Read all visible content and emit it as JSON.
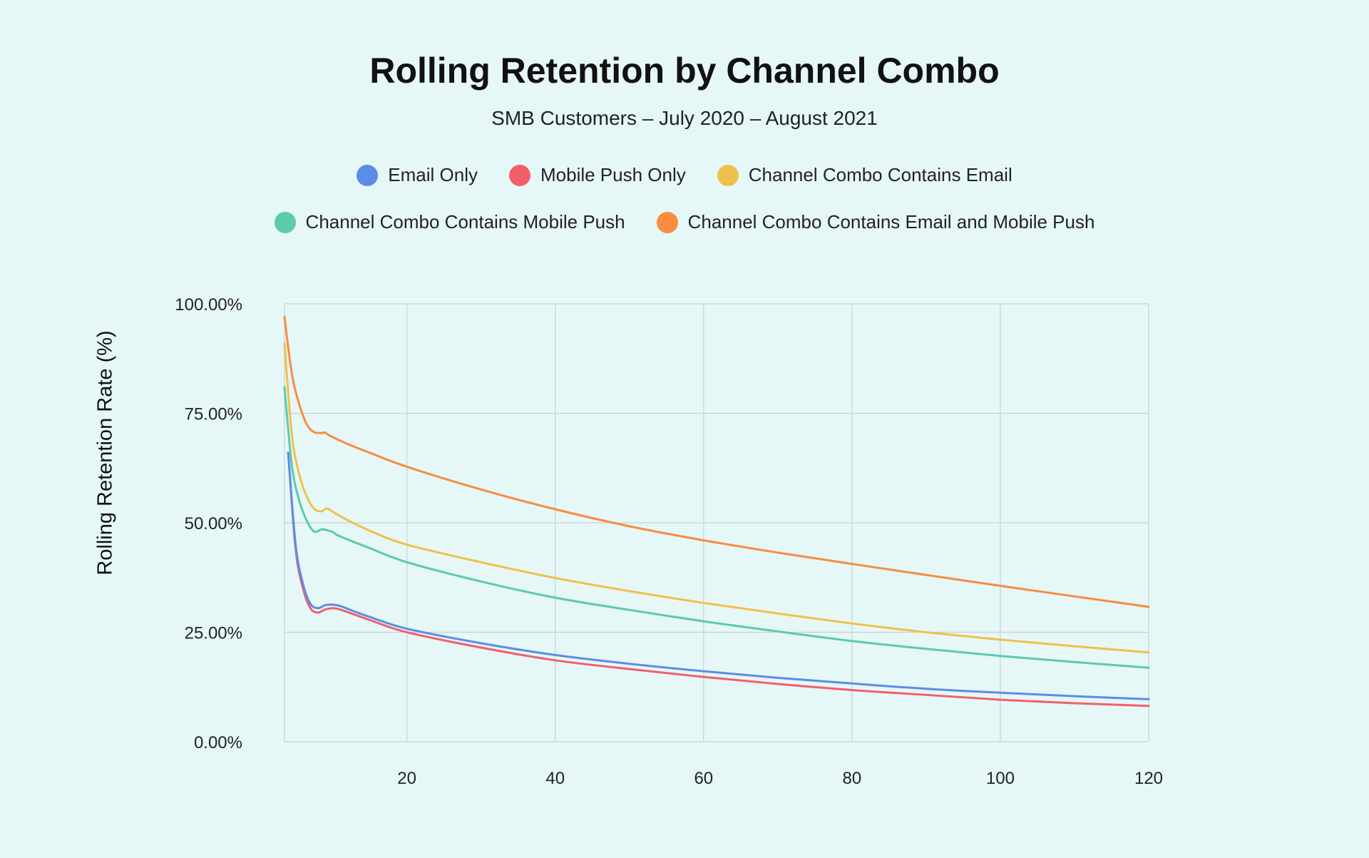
{
  "chart_data": {
    "type": "line",
    "title": "Rolling Retention by Channel Combo",
    "subtitle": "SMB Customers – July 2020 – August 2021",
    "xlabel": "",
    "ylabel": "Rolling Retention Rate (%)",
    "xlim": [
      3.5,
      120
    ],
    "ylim": [
      0,
      100
    ],
    "x_ticks": [
      20,
      40,
      60,
      80,
      100,
      120
    ],
    "y_ticks": [
      0,
      25,
      50,
      75,
      100
    ],
    "y_tick_labels": [
      "0.00%",
      "25.00%",
      "50.00%",
      "75.00%",
      "100.00%"
    ],
    "grid": true,
    "legend_position": "top",
    "series": [
      {
        "name": "Email Only",
        "color": "#5b8de6",
        "x": [
          4,
          5,
          6,
          7,
          8,
          9,
          10,
          11,
          13,
          15,
          20,
          30,
          40,
          50,
          60,
          70,
          80,
          90,
          100,
          110,
          120
        ],
        "values": [
          66,
          45,
          36,
          31.5,
          30.5,
          31.2,
          31.3,
          31,
          29.7,
          28.5,
          25.8,
          22.5,
          19.8,
          17.8,
          16.1,
          14.6,
          13.3,
          12.1,
          11.2,
          10.4,
          9.7
        ]
      },
      {
        "name": "Mobile Push Only",
        "color": "#f25f6b",
        "x": [
          4,
          5,
          6,
          7,
          8,
          9,
          10,
          11,
          13,
          15,
          20,
          30,
          40,
          50,
          60,
          70,
          80,
          90,
          100,
          110,
          120
        ],
        "values": [
          66,
          44,
          35,
          30.5,
          29.5,
          30.2,
          30.5,
          30.2,
          29,
          27.8,
          25,
          21.5,
          18.6,
          16.6,
          14.8,
          13.2,
          11.8,
          10.7,
          9.6,
          8.8,
          8.2
        ]
      },
      {
        "name": "Channel Combo Contains Email",
        "color": "#efc04a",
        "x": [
          3.5,
          4.5,
          5.5,
          6.5,
          7.5,
          8.5,
          9,
          9.5,
          10,
          12,
          15,
          20,
          30,
          40,
          50,
          60,
          70,
          80,
          90,
          100,
          110,
          120
        ],
        "values": [
          91,
          70,
          61,
          56,
          53.2,
          52.6,
          53.2,
          53.1,
          52.5,
          50.6,
          48.2,
          45,
          41,
          37.4,
          34.4,
          31.7,
          29.3,
          27,
          25,
          23.3,
          21.8,
          20.4
        ]
      },
      {
        "name": "Channel Combo Contains Mobile Push",
        "color": "#5bcba8",
        "x": [
          3.5,
          4.5,
          5.5,
          6.5,
          7.5,
          8.5,
          9,
          10,
          10.5,
          12,
          15,
          20,
          30,
          40,
          50,
          60,
          70,
          80,
          90,
          100,
          110,
          120
        ],
        "values": [
          81,
          63,
          55,
          50.5,
          48,
          48.5,
          48.4,
          47.9,
          47.3,
          46.2,
          44.2,
          41,
          36.6,
          32.9,
          30.1,
          27.5,
          25.2,
          23,
          21.2,
          19.6,
          18.2,
          16.9
        ]
      },
      {
        "name": "Channel Combo Contains Email and Mobile Push",
        "color": "#f98c3e",
        "x": [
          3.5,
          4.5,
          5.5,
          6.5,
          7.5,
          8.5,
          9,
          9.5,
          12,
          15,
          20,
          30,
          40,
          50,
          60,
          70,
          80,
          90,
          100,
          110,
          120
        ],
        "values": [
          97,
          84,
          77,
          72.5,
          70.7,
          70.5,
          70.6,
          70,
          68,
          66,
          62.8,
          57.6,
          53.1,
          49.2,
          46,
          43.2,
          40.6,
          38.1,
          35.6,
          33.2,
          30.8
        ]
      }
    ]
  }
}
